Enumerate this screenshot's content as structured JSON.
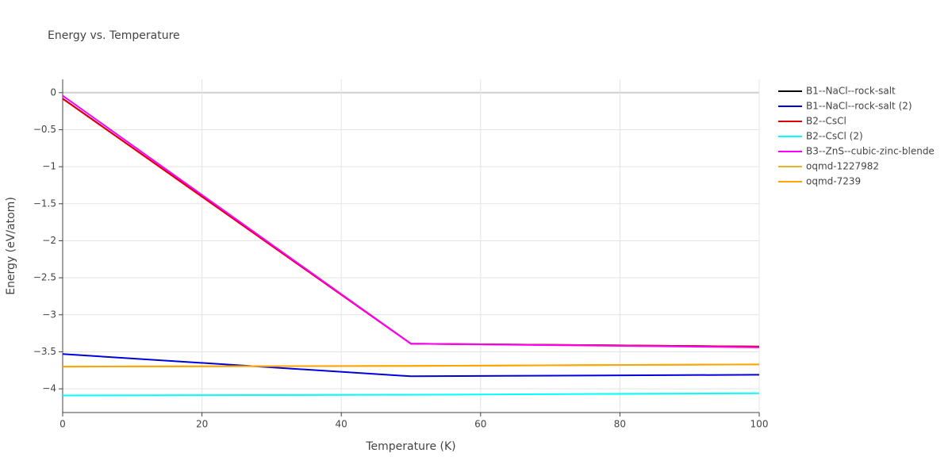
{
  "chart_data": {
    "type": "line",
    "title": "Energy vs. Temperature",
    "x_label": "Temperature (K)",
    "y_label": "Energy (eV/atom)",
    "x": [
      0,
      50,
      100
    ],
    "series": [
      {
        "name": "B1--NaCl--rock-salt",
        "color": "#000000",
        "values": [
          -0.08,
          -3.39,
          -3.43
        ]
      },
      {
        "name": "B1--NaCl--rock-salt (2)",
        "color": "#0000dd",
        "values": [
          -3.53,
          -3.83,
          -3.81
        ]
      },
      {
        "name": "B2--CsCl",
        "color": "#e00000",
        "values": [
          -0.08,
          -3.39,
          -3.43
        ]
      },
      {
        "name": "B2--CsCl (2)",
        "color": "#00ffff",
        "values": [
          -4.09,
          -4.08,
          -4.06
        ]
      },
      {
        "name": "B3--ZnS--cubic-zinc-blende",
        "color": "#ff00ff",
        "values": [
          -0.04,
          -3.39,
          -3.44
        ]
      },
      {
        "name": "oqmd-1227982",
        "color": "#e6b422",
        "values": [
          -3.7,
          -3.69,
          -3.67
        ]
      },
      {
        "name": "oqmd-7239",
        "color": "#ffa500",
        "values": [
          -3.7,
          -3.69,
          -3.67
        ]
      }
    ],
    "xlim": [
      0,
      100
    ],
    "xticks": [
      0,
      20,
      40,
      60,
      80,
      100
    ],
    "ylim": [
      -4.32,
      0.18
    ],
    "yticks": [
      0,
      {
        "value": -0.5,
        "label": "−0.5"
      },
      {
        "value": -1,
        "label": "−1"
      },
      {
        "value": -1.5,
        "label": "−1.5"
      },
      {
        "value": -2,
        "label": "−2"
      },
      {
        "value": -2.5,
        "label": "−2.5"
      },
      {
        "value": -3,
        "label": "−3"
      },
      {
        "value": -3.5,
        "label": "−3.5"
      },
      {
        "value": -4,
        "label": "−4"
      }
    ],
    "grid": true
  }
}
